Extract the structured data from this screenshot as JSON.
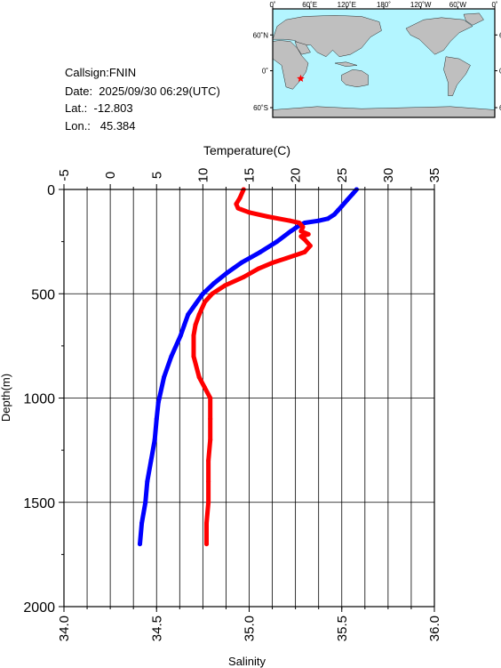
{
  "info": {
    "callsign": "Callsign:FNIN",
    "date": "Date:  2025/09/30 06:29(UTC)",
    "lat": "Lat.:  -12.803",
    "lon": "Lon.:   45.384"
  },
  "map": {
    "top_ticks": [
      "0˚",
      "60˚E",
      "120˚E",
      "180˚",
      "120˚W",
      "60˚W",
      "0˚"
    ],
    "lat_ticks": [
      "60˚N",
      "0˚",
      "60˚S"
    ],
    "ocean_color": "#b3f5ff",
    "land_color": "#bfbfbf",
    "marker": {
      "lon": 45.384,
      "lat": -12.803,
      "color": "#ff0000"
    }
  },
  "chart_data": {
    "type": "line",
    "top_axis": {
      "label": "Temperature(C)",
      "range": [
        -5,
        35
      ],
      "ticks": [
        "-5",
        "0",
        "5",
        "10",
        "15",
        "20",
        "25",
        "30",
        "35"
      ]
    },
    "bottom_axis": {
      "label": "Salinity",
      "range": [
        34.0,
        36.0
      ],
      "ticks": [
        "34.0",
        "34.5",
        "35.0",
        "35.5",
        "36.0"
      ]
    },
    "left_axis": {
      "label": "Depth(m)",
      "range": [
        0,
        2000
      ],
      "inverted": true,
      "ticks": [
        "0",
        "500",
        "1000",
        "1500",
        "2000"
      ]
    },
    "grid": true,
    "series": [
      {
        "axis": "temperature",
        "color": "#0000ff",
        "depth": [
          0,
          20,
          50,
          80,
          100,
          120,
          140,
          150,
          160,
          170,
          185,
          200,
          250,
          300,
          350,
          400,
          450,
          500,
          550,
          600,
          650,
          700,
          800,
          900,
          1000,
          1020,
          1100,
          1200,
          1300,
          1400,
          1500,
          1600,
          1700
        ],
        "values": [
          26.6,
          26.2,
          25.6,
          25.0,
          24.6,
          24.2,
          23.5,
          22.5,
          21.0,
          20.5,
          20.0,
          19.5,
          18.0,
          16.2,
          14.2,
          12.6,
          11.2,
          10.0,
          9.2,
          8.4,
          8.0,
          7.6,
          6.6,
          5.8,
          5.3,
          5.2,
          5.0,
          4.8,
          4.4,
          4.0,
          3.8,
          3.4,
          3.2
        ]
      },
      {
        "axis": "salinity",
        "color": "#ff0000",
        "depth": [
          0,
          40,
          70,
          90,
          110,
          130,
          150,
          160,
          180,
          200,
          215,
          225,
          240,
          270,
          300,
          330,
          350,
          380,
          420,
          460,
          500,
          540,
          600,
          650,
          700,
          800,
          900,
          950,
          1000,
          1100,
          1200,
          1300,
          1400,
          1500,
          1600,
          1700
        ],
        "values": [
          34.97,
          34.95,
          34.93,
          34.94,
          35.0,
          35.1,
          35.22,
          35.27,
          35.29,
          35.28,
          35.32,
          35.28,
          35.3,
          35.33,
          35.3,
          35.2,
          35.13,
          35.05,
          34.97,
          34.87,
          34.8,
          34.76,
          34.73,
          34.71,
          34.7,
          34.7,
          34.73,
          34.76,
          34.79,
          34.79,
          34.79,
          34.78,
          34.78,
          34.78,
          34.77,
          34.77
        ]
      }
    ]
  }
}
